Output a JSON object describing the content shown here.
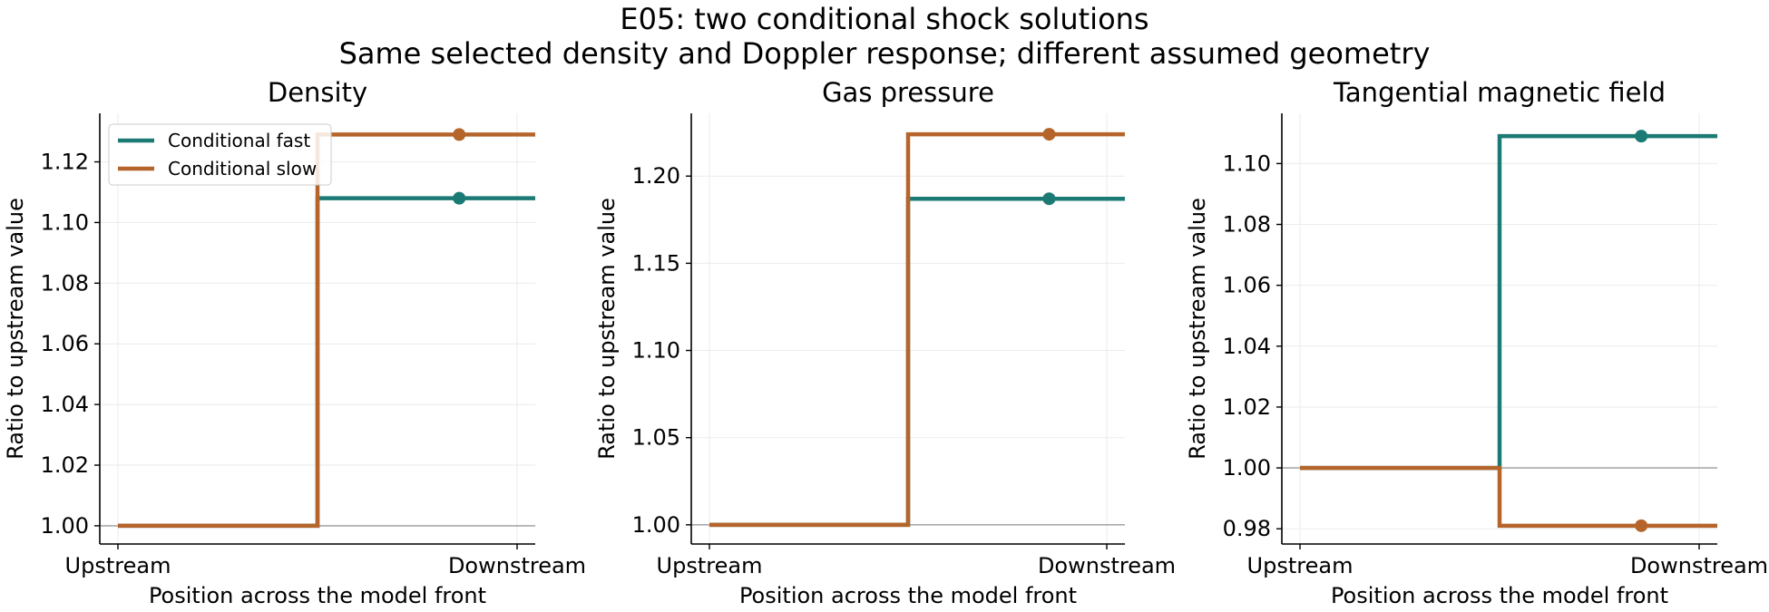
{
  "figure": {
    "title": "E05: two conditional shock solutions",
    "subtitle": "Same selected density and Doppler response; different assumed geometry"
  },
  "colors": {
    "fast": "#1b7a74",
    "slow": "#b5652b",
    "reference": "#aaaaaa",
    "grid": "#ebebeb"
  },
  "chart_data": [
    {
      "type": "line",
      "title": "Density",
      "xlabel": "Position across the model front",
      "ylabel": "Ratio to upstream value",
      "x_ticks": [
        "Upstream",
        "Downstream"
      ],
      "y_ticks": [
        "1.00",
        "1.02",
        "1.04",
        "1.06",
        "1.08",
        "1.10",
        "1.12"
      ],
      "ylim": [
        0.994,
        1.136
      ],
      "reference_line": 1.0,
      "grid": true,
      "legend": {
        "position": "top-left",
        "entries": [
          "Conditional fast",
          "Conditional slow"
        ]
      },
      "series": [
        {
          "name": "Conditional fast",
          "upstream": 1.0,
          "downstream": 1.108
        },
        {
          "name": "Conditional slow",
          "upstream": 1.0,
          "downstream": 1.129
        }
      ]
    },
    {
      "type": "line",
      "title": "Gas pressure",
      "xlabel": "Position across the model front",
      "ylabel": "Ratio to upstream value",
      "x_ticks": [
        "Upstream",
        "Downstream"
      ],
      "y_ticks": [
        "1.00",
        "1.05",
        "1.10",
        "1.15",
        "1.20"
      ],
      "ylim": [
        0.989,
        1.236
      ],
      "reference_line": 1.0,
      "grid": true,
      "series": [
        {
          "name": "Conditional fast",
          "upstream": 1.0,
          "downstream": 1.187
        },
        {
          "name": "Conditional slow",
          "upstream": 1.0,
          "downstream": 1.224
        }
      ]
    },
    {
      "type": "line",
      "title": "Tangential magnetic field",
      "xlabel": "Position across the model front",
      "ylabel": "Ratio to upstream value",
      "x_ticks": [
        "Upstream",
        "Downstream"
      ],
      "y_ticks": [
        "0.98",
        "1.00",
        "1.02",
        "1.04",
        "1.06",
        "1.08",
        "1.10"
      ],
      "ylim": [
        0.975,
        1.1165
      ],
      "reference_line": 1.0,
      "grid": true,
      "series": [
        {
          "name": "Conditional fast",
          "upstream": 1.0,
          "downstream": 1.109
        },
        {
          "name": "Conditional slow",
          "upstream": 1.0,
          "downstream": 0.981
        }
      ]
    }
  ]
}
